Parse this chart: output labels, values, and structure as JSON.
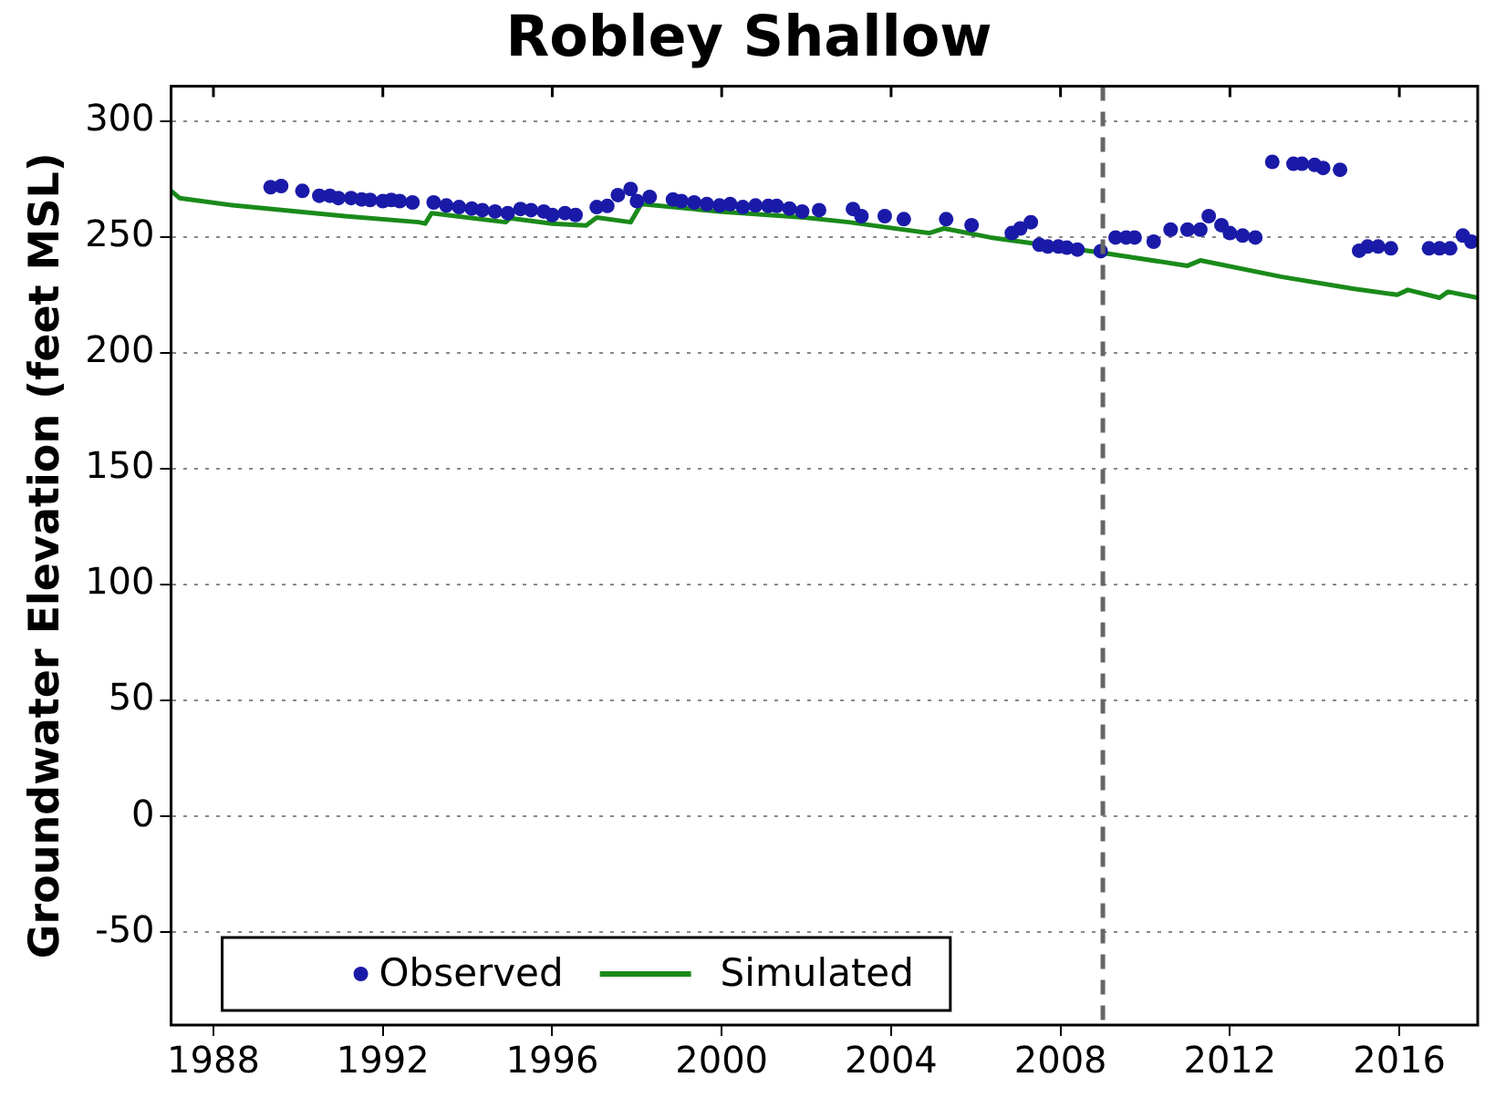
{
  "chart_data": {
    "type": "scatter",
    "title": "Robley Shallow",
    "ylabel": "Groundwater Elevation (feet MSL)",
    "xlim": [
      1987,
      2017.85
    ],
    "xticks": [
      1988,
      1992,
      1996,
      2000,
      2004,
      2008,
      2012,
      2016
    ],
    "ylim": [
      -90,
      315
    ],
    "yticks": [
      -50,
      0,
      50,
      100,
      150,
      200,
      250,
      300
    ],
    "grid": "y",
    "legend": "bottom left",
    "marker": "circle",
    "ref_lines": [
      {
        "axis": "x",
        "value": 2009,
        "color": "#666666",
        "line_style": "dashed"
      }
    ],
    "series": [
      {
        "name": "Observed",
        "color": "#1a1aa8",
        "x": [
          1989.35,
          1989.6,
          1990.1,
          1990.5,
          1990.75,
          1990.95,
          1991.25,
          1991.5,
          1991.7,
          1992.0,
          1992.2,
          1992.4,
          1992.7,
          1993.2,
          1993.5,
          1993.8,
          1994.1,
          1994.35,
          1994.65,
          1994.95,
          1995.25,
          1995.5,
          1995.8,
          1996.0,
          1996.3,
          1996.55,
          1997.05,
          1997.3,
          1997.55,
          1997.85,
          1998.0,
          1998.3,
          1998.85,
          1999.05,
          1999.35,
          1999.65,
          1999.95,
          2000.2,
          2000.5,
          2000.8,
          2001.1,
          2001.3,
          2001.6,
          2001.9,
          2002.3,
          2003.1,
          2003.3,
          2003.85,
          2004.3,
          2005.3,
          2005.9,
          2006.85,
          2007.05,
          2007.3,
          2007.5,
          2007.7,
          2007.95,
          2008.15,
          2008.4,
          2008.95,
          2009.3,
          2009.55,
          2009.75,
          2010.2,
          2010.6,
          2011.0,
          2011.3,
          2011.5,
          2011.8,
          2012.0,
          2012.3,
          2012.6,
          2013.0,
          2013.5,
          2013.7,
          2014.0,
          2014.2,
          2014.6,
          2015.05,
          2015.25,
          2015.5,
          2015.8,
          2016.7,
          2016.95,
          2017.2,
          2017.5,
          2017.7
        ],
        "values": [
          271.4,
          271.9,
          269.8,
          267.7,
          267.7,
          266.7,
          266.7,
          266.1,
          265.9,
          265.4,
          265.9,
          265.4,
          264.8,
          264.8,
          263.5,
          262.8,
          262.2,
          261.5,
          260.9,
          260.2,
          262,
          261.5,
          260.9,
          259.4,
          260.2,
          259.4,
          262.8,
          263.3,
          268,
          270.6,
          265.4,
          267.2,
          266.1,
          265.4,
          264.8,
          264.1,
          263.5,
          264.1,
          262.8,
          263.5,
          263.3,
          263.3,
          262.2,
          260.9,
          261.5,
          262,
          258.9,
          258.9,
          257.6,
          257.6,
          255,
          251.6,
          253.6,
          256.3,
          246.6,
          245.8,
          245.8,
          245.3,
          244.5,
          243.8,
          249.7,
          249.7,
          249.7,
          247.9,
          253.1,
          253.1,
          253.1,
          258.9,
          255,
          251.6,
          250.5,
          249.7,
          282.3,
          281.5,
          281.5,
          281,
          279.7,
          278.9,
          244,
          245.8,
          245.8,
          245,
          245,
          245,
          245,
          250.5,
          247.9
        ]
      },
      {
        "name": "Simulated",
        "type": "line",
        "color": "#1a8a1a",
        "marker": "none",
        "x": [
          1987.0,
          1987.2,
          1988.5,
          1991.1,
          1992.85,
          1993.0,
          1993.15,
          1994.9,
          1995.0,
          1996.0,
          1996.8,
          1997.05,
          1997.85,
          1998.1,
          1999.95,
          2001.95,
          2003.0,
          2004.9,
          2005.25,
          2006.35,
          2007.65,
          2008.95,
          2011.0,
          2011.3,
          2013.2,
          2014.9,
          2015.95,
          2016.2,
          2016.95,
          2017.15,
          2017.85
        ],
        "values": [
          269.8,
          266.7,
          263.5,
          258.9,
          256.3,
          255.7,
          260.2,
          256.3,
          258,
          255.7,
          254.9,
          258.3,
          256.3,
          264.1,
          260.9,
          258.3,
          256.3,
          251.6,
          253.6,
          249.7,
          246.4,
          243.2,
          237.5,
          239.8,
          232.8,
          227.6,
          225,
          227.1,
          223.7,
          226.3,
          223.7
        ]
      }
    ]
  }
}
